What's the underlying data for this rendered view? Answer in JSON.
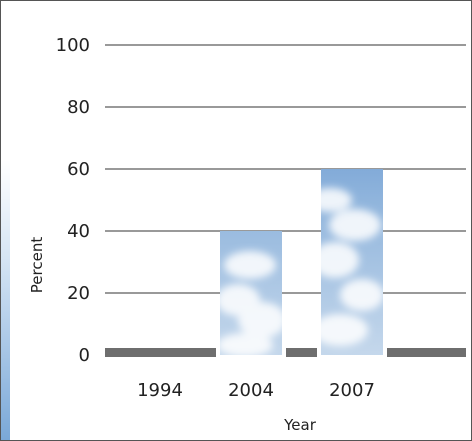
{
  "chart_data": {
    "type": "bar",
    "categories": [
      "1994",
      "2004",
      "2007"
    ],
    "values": [
      0,
      40,
      60
    ],
    "xlabel": "Year",
    "ylabel": "Percent",
    "ylim": [
      0,
      100
    ],
    "yticks": [
      0,
      20,
      40,
      60,
      80,
      100
    ],
    "grid": true,
    "bar_fill": "cloudy-sky-image",
    "colors": {
      "grid": "#333333",
      "baseline": "#6e6e6e",
      "frame": "#555555",
      "left_strip": "#8ab4dd",
      "sky_top": "#3b78c6",
      "sky_bottom": "#dce8f3"
    }
  }
}
